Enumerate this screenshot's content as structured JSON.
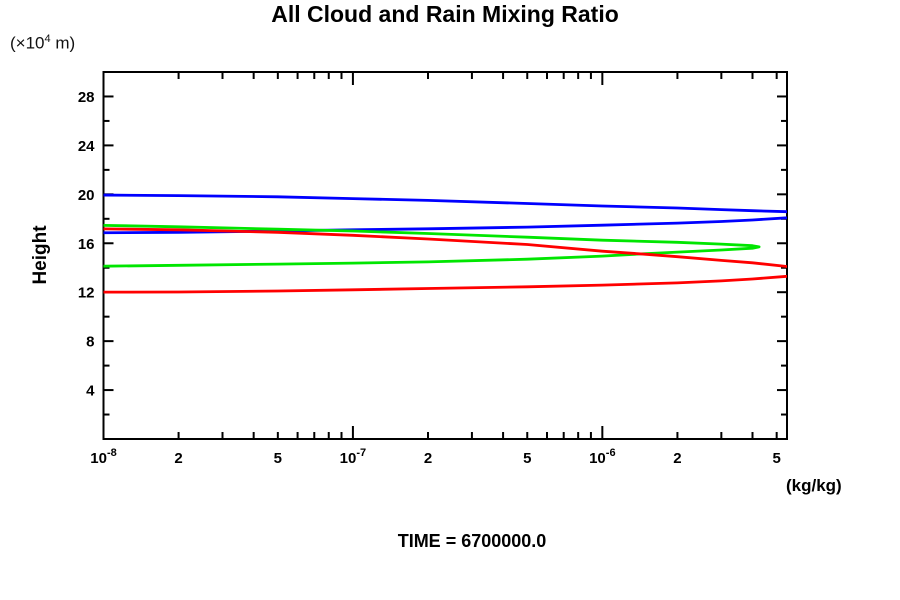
{
  "title": "All Cloud and Rain Mixing Ratio",
  "y_axis": {
    "unit_prefix": "(×10",
    "unit_sup": "4",
    "unit_suffix": " m)",
    "label": "Height",
    "min": 0,
    "max": 30,
    "major_step": 4,
    "minor_step": 2,
    "tick_labels": [
      {
        "text": "4",
        "value": 4
      },
      {
        "text": "8",
        "value": 8
      },
      {
        "text": "12",
        "value": 12
      },
      {
        "text": "16",
        "value": 16
      },
      {
        "text": "20",
        "value": 20
      },
      {
        "text": "24",
        "value": 24
      },
      {
        "text": "28",
        "value": 28
      }
    ]
  },
  "x_axis": {
    "unit": "(kg/kg)",
    "scale": "log",
    "min": 1e-08,
    "max": 5.5e-06,
    "decades": [
      -8,
      -7,
      -6
    ],
    "tick_labels": [
      {
        "text": "10",
        "sup": "-8",
        "value": 1e-08
      },
      {
        "text": "2",
        "value": 2e-08
      },
      {
        "text": "5",
        "value": 5e-08
      },
      {
        "text": "10",
        "sup": "-7",
        "value": 1e-07
      },
      {
        "text": "2",
        "value": 2e-07
      },
      {
        "text": "5",
        "value": 5e-07
      },
      {
        "text": "10",
        "sup": "-6",
        "value": 1e-06
      },
      {
        "text": "2",
        "value": 2e-06
      },
      {
        "text": "5",
        "value": 5e-06
      }
    ]
  },
  "footer": {
    "time_label": "TIME = 6700000.0"
  },
  "chart_data": {
    "type": "line",
    "title": "All Cloud and Rain Mixing Ratio",
    "xlabel": "(kg/kg)",
    "ylabel": "Height (x10^4 m)",
    "x_scale": "log",
    "xlim": [
      1e-08,
      5.5e-06
    ],
    "ylim": [
      0,
      30
    ],
    "grid": false,
    "legend": "none",
    "frame": "box-with-inward-ticks",
    "series": [
      {
        "name": "blue",
        "color": "#0000ff",
        "points": [
          [
            8e-09,
            19.95
          ],
          [
            2e-08,
            19.9
          ],
          [
            5e-08,
            19.8
          ],
          [
            1e-07,
            19.65
          ],
          [
            2e-07,
            19.5
          ],
          [
            5e-07,
            19.25
          ],
          [
            1e-06,
            19.05
          ],
          [
            2e-06,
            18.88
          ],
          [
            3e-06,
            18.75
          ],
          [
            4e-06,
            18.66
          ],
          [
            5.5e-06,
            18.58
          ],
          [
            7.5e-06,
            18.35
          ],
          [
            5.5e-06,
            18.08
          ],
          [
            4e-06,
            17.9
          ],
          [
            3e-06,
            17.78
          ],
          [
            2e-06,
            17.65
          ],
          [
            1e-06,
            17.48
          ],
          [
            5e-07,
            17.32
          ],
          [
            2e-07,
            17.18
          ],
          [
            1e-07,
            17.1
          ],
          [
            5e-08,
            17.0
          ],
          [
            2e-08,
            16.9
          ],
          [
            8e-09,
            16.85
          ]
        ]
      },
      {
        "name": "green",
        "color": "#00e600",
        "points": [
          [
            8e-09,
            17.5
          ],
          [
            2e-08,
            17.35
          ],
          [
            5e-08,
            17.15
          ],
          [
            1e-07,
            17.0
          ],
          [
            2e-07,
            16.8
          ],
          [
            5e-07,
            16.5
          ],
          [
            1e-06,
            16.25
          ],
          [
            2e-06,
            16.08
          ],
          [
            3e-06,
            15.93
          ],
          [
            4e-06,
            15.8
          ],
          [
            4.25e-06,
            15.7
          ],
          [
            4e-06,
            15.6
          ],
          [
            3e-06,
            15.45
          ],
          [
            2e-06,
            15.28
          ],
          [
            1.4e-06,
            15.12
          ],
          [
            1e-06,
            14.95
          ],
          [
            5e-07,
            14.7
          ],
          [
            2e-07,
            14.48
          ],
          [
            1e-07,
            14.38
          ],
          [
            5e-08,
            14.3
          ],
          [
            2e-08,
            14.2
          ],
          [
            8e-09,
            14.1
          ]
        ]
      },
      {
        "name": "red",
        "color": "#ff0000",
        "points": [
          [
            8e-09,
            17.2
          ],
          [
            2e-08,
            17.1
          ],
          [
            5e-08,
            16.9
          ],
          [
            1e-07,
            16.65
          ],
          [
            2e-07,
            16.35
          ],
          [
            5e-07,
            15.9
          ],
          [
            1e-06,
            15.35
          ],
          [
            1.5e-06,
            15.1
          ],
          [
            2e-06,
            14.9
          ],
          [
            3e-06,
            14.6
          ],
          [
            4e-06,
            14.4
          ],
          [
            5.5e-06,
            14.1
          ],
          [
            7.5e-06,
            13.7
          ],
          [
            5.5e-06,
            13.3
          ],
          [
            4e-06,
            13.08
          ],
          [
            3e-06,
            12.92
          ],
          [
            2e-06,
            12.76
          ],
          [
            1e-06,
            12.58
          ],
          [
            5e-07,
            12.44
          ],
          [
            2e-07,
            12.3
          ],
          [
            1e-07,
            12.2
          ],
          [
            5e-08,
            12.1
          ],
          [
            2e-08,
            12.02
          ],
          [
            8e-09,
            12.0
          ]
        ]
      }
    ]
  }
}
